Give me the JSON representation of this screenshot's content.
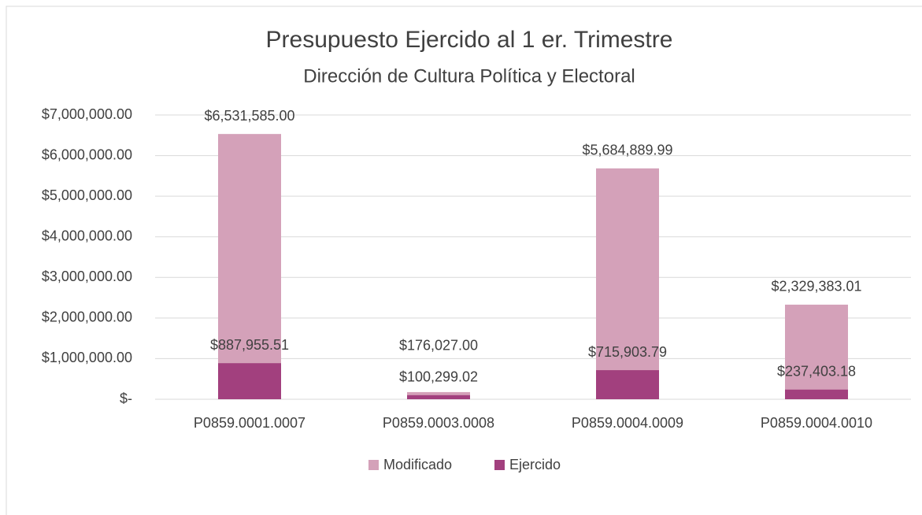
{
  "chart_data": {
    "type": "bar",
    "title": "Presupuesto Ejercido al 1 er. Trimestre",
    "subtitle": "Dirección de Cultura Política y Electoral",
    "categories": [
      "P0859.0001.0007",
      "P0859.0003.0008",
      "P0859.0004.0009",
      "P0859.0004.0010"
    ],
    "series": [
      {
        "name": "Modificado",
        "color": "#d4a1b9",
        "values": [
          6531585.0,
          176027.0,
          5684889.99,
          2329383.01
        ],
        "value_labels": [
          "$6,531,585.00",
          "$176,027.00",
          "$5,684,889.99",
          "$2,329,383.01"
        ]
      },
      {
        "name": "Ejercido",
        "color": "#a2407e",
        "values": [
          887955.51,
          100299.02,
          715903.79,
          237403.18
        ],
        "value_labels": [
          "$887,955.51",
          "$100,299.02",
          "$715,903.79",
          "$237,403.18"
        ]
      }
    ],
    "ylim": [
      0,
      7000000
    ],
    "yticks": [
      {
        "value": 0,
        "label": "$-"
      },
      {
        "value": 1000000,
        "label": "$1,000,000.00"
      },
      {
        "value": 2000000,
        "label": "$2,000,000.00"
      },
      {
        "value": 3000000,
        "label": "$3,000,000.00"
      },
      {
        "value": 4000000,
        "label": "$4,000,000.00"
      },
      {
        "value": 5000000,
        "label": "$5,000,000.00"
      },
      {
        "value": 6000000,
        "label": "$6,000,000.00"
      },
      {
        "value": 7000000,
        "label": "$7,000,000.00"
      }
    ],
    "grid": true,
    "legend": "bottom"
  }
}
